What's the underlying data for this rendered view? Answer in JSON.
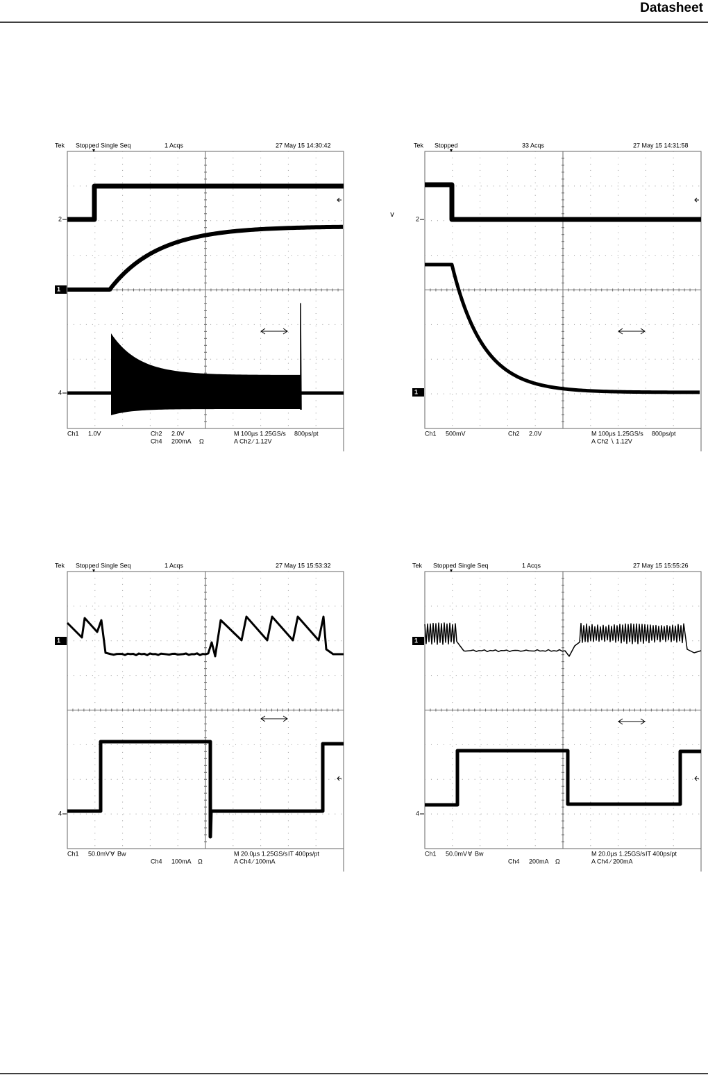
{
  "header": {
    "title": "Datasheet"
  },
  "stray_mark": "v",
  "scopes": [
    {
      "header": [
        "Tek",
        "Stopped",
        "Single Seq",
        "1 Acqs",
        "27 May 15 14:30:42"
      ],
      "markers": [
        "2",
        "1",
        "4"
      ],
      "footer": [
        [
          "Ch1",
          "1.0V",
          "Ch2",
          "2.0V",
          "M 100µs 1.25GS/s",
          "800ps/pt"
        ],
        [
          "Ch4",
          "200mA",
          "Ω",
          "A Ch2 ∕ 1.12V"
        ]
      ]
    },
    {
      "header": [
        "Tek",
        "Stopped",
        "33 Acqs",
        "27 May 15 14:31:58"
      ],
      "markers": [
        "2",
        "1"
      ],
      "footer": [
        [
          "Ch1",
          "500mV",
          "Ch2",
          "2.0V",
          "M 100µs 1.25GS/s",
          "800ps/pt"
        ],
        [
          "A Ch2 ∖ 1.12V"
        ]
      ]
    },
    {
      "header": [
        "Tek",
        "Stopped",
        "Single Seq",
        "1 Acqs",
        "27 May 15 15:53:32"
      ],
      "markers": [
        "1",
        "4"
      ],
      "footer": [
        [
          "Ch1",
          "50.0mV",
          "Ɐ",
          "Bw",
          "M 20.0µs 1.25GS/s",
          "IT 400ps/pt"
        ],
        [
          "Ch4",
          "100mA",
          "Ω",
          "A Ch4 ∕ 100mA"
        ]
      ]
    },
    {
      "header": [
        "Tek",
        "Stopped",
        "Single Seq",
        "1 Acqs",
        "27 May 15 15:55:26"
      ],
      "markers": [
        "1",
        "4"
      ],
      "footer": [
        [
          "Ch1",
          "50.0mV",
          "Ɐ",
          "Bw",
          "M 20.0µs 1.25GS/s",
          "IT 400ps/pt"
        ],
        [
          "Ch4",
          "200mA",
          "Ω",
          "A Ch4 ∕ 200mA"
        ]
      ]
    }
  ]
}
